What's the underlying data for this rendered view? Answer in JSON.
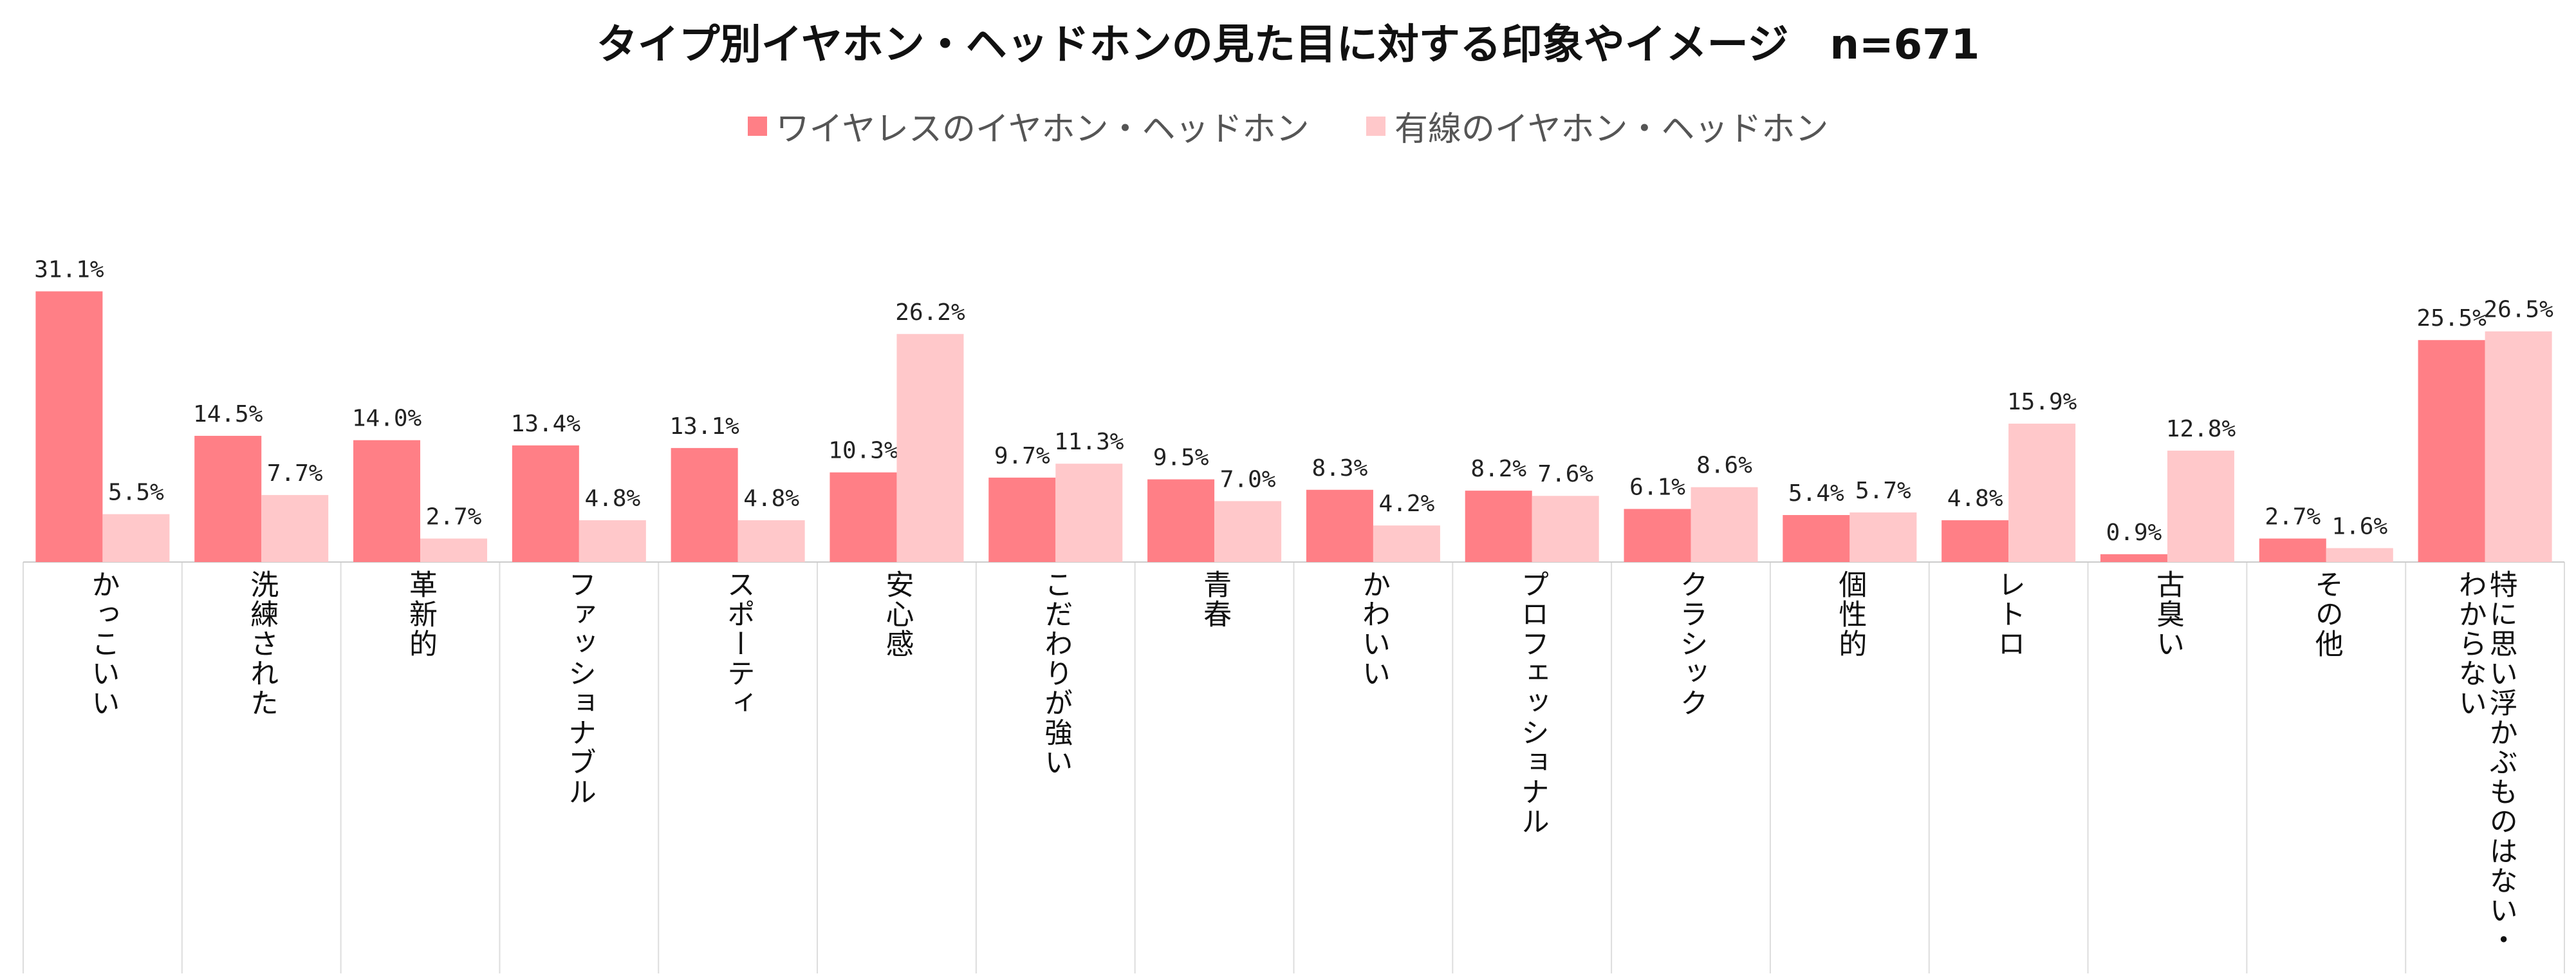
{
  "title": "タイプ別イヤホン・ヘッドホンの見た目に対する印象やイメージ　n=671",
  "legend": [
    {
      "label": "ワイヤレスのイヤホン・ヘッドホン",
      "color": "#FF7F86"
    },
    {
      "label": "有線のイヤホン・ヘッドホン",
      "color": "#FFC8CA"
    }
  ],
  "chart_data": {
    "type": "bar",
    "title": "タイプ別イヤホン・ヘッドホンの見た目に対する印象やイメージ　n=671",
    "xlabel": "",
    "ylabel": "",
    "ylim": [
      0,
      35
    ],
    "grid": false,
    "legend_position": "top",
    "categories": [
      "かっこいい",
      "洗練された",
      "革新的",
      "ファッショナブル",
      "スポーティ",
      "安心感",
      "こだわりが強い",
      "青春",
      "かわいい",
      "プロフェッショナル",
      "クラシック",
      "個性的",
      "レトロ",
      "古臭い",
      "その他",
      "特に思い浮かぶものはない・わからない"
    ],
    "series": [
      {
        "name": "ワイヤレスのイヤホン・ヘッドホン",
        "color": "#FF7F86",
        "values": [
          31.1,
          14.5,
          14.0,
          13.4,
          13.1,
          10.3,
          9.7,
          9.5,
          8.3,
          8.2,
          6.1,
          5.4,
          4.8,
          0.9,
          2.7,
          25.5
        ],
        "labels": [
          "31.1%",
          "14.5%",
          "14.0%",
          "13.4%",
          "13.1%",
          "10.3%",
          "9.7%",
          "9.5%",
          "8.3%",
          "8.2%",
          "6.1%",
          "5.4%",
          "4.8%",
          "0.9%",
          "2.7%",
          "25.5%"
        ]
      },
      {
        "name": "有線のイヤホン・ヘッドホン",
        "color": "#FFC8CA",
        "values": [
          5.5,
          7.7,
          2.7,
          4.8,
          4.8,
          26.2,
          11.3,
          7.0,
          4.2,
          7.6,
          8.6,
          5.7,
          15.9,
          12.8,
          1.6,
          26.5
        ],
        "labels": [
          "5.5%",
          "7.7%",
          "2.7%",
          "4.8%",
          "4.8%",
          "26.2%",
          "11.3%",
          "7.0%",
          "4.2%",
          "7.6%",
          "8.6%",
          "5.7%",
          "15.9%",
          "12.8%",
          "1.6%",
          "26.5%"
        ]
      }
    ]
  }
}
